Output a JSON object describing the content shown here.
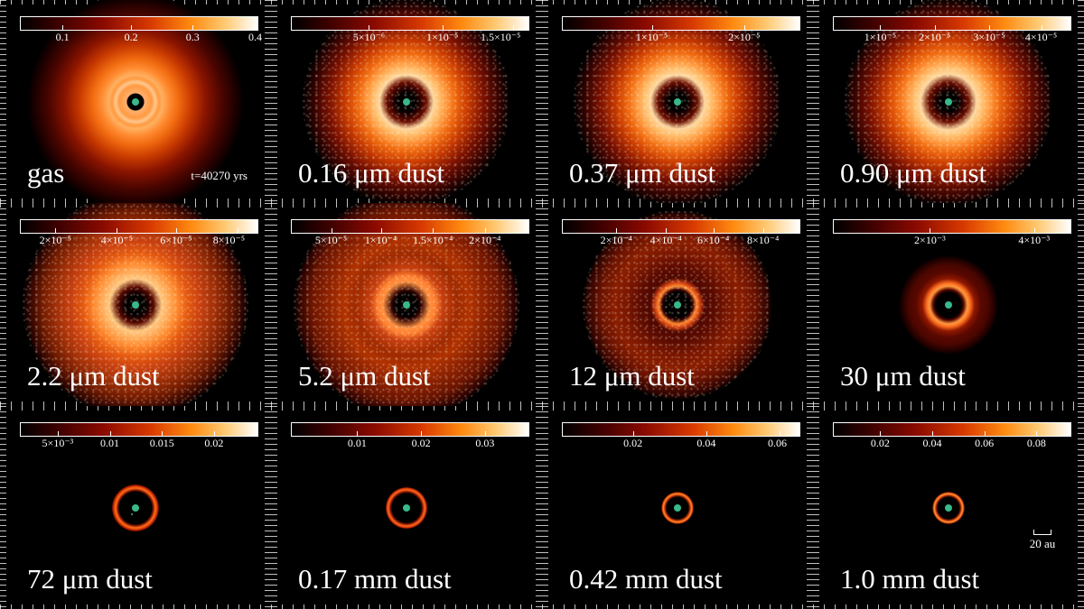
{
  "panels": [
    {
      "label": "gas",
      "time": "t=40270 yrs",
      "ticks": [
        "0.1",
        "0.2",
        "0.3",
        "0.4"
      ],
      "tickpos": [
        0.18,
        0.47,
        0.73,
        1.0
      ]
    },
    {
      "label": "0.16 μm dust",
      "ticks": [
        "5×10⁻⁶",
        "1×10⁻⁵",
        "1.5×10⁻⁵"
      ],
      "tickpos": [
        0.33,
        0.64,
        0.94
      ]
    },
    {
      "label": "0.37 μm dust",
      "ticks": [
        "1×10⁻⁵",
        "2×10⁻⁵"
      ],
      "tickpos": [
        0.38,
        0.77
      ]
    },
    {
      "label": "0.90 μm dust",
      "ticks": [
        "1×10⁻⁵",
        "2×10⁻⁵",
        "3×10⁻⁵",
        "4×10⁻⁵"
      ],
      "tickpos": [
        0.2,
        0.43,
        0.66,
        0.88
      ]
    },
    {
      "label": "2.2 μm dust",
      "ticks": [
        "2×10⁻⁵",
        "4×10⁻⁵",
        "6×10⁻⁵",
        "8×10⁻⁵"
      ],
      "tickpos": [
        0.15,
        0.41,
        0.66,
        0.92
      ]
    },
    {
      "label": "5.2 μm dust",
      "ticks": [
        "5×10⁻⁵",
        "1×10⁻⁴",
        "1.5×10⁻⁴",
        "2×10⁻⁴"
      ],
      "tickpos": [
        0.17,
        0.38,
        0.6,
        0.82
      ]
    },
    {
      "label": "12 μm dust",
      "ticks": [
        "2×10⁻⁴",
        "4×10⁻⁴",
        "6×10⁻⁴",
        "8×10⁻⁴"
      ],
      "tickpos": [
        0.23,
        0.44,
        0.64,
        0.85
      ]
    },
    {
      "label": "30 μm dust",
      "ticks": [
        "2×10⁻³",
        "4×10⁻³"
      ],
      "tickpos": [
        0.41,
        0.85
      ]
    },
    {
      "label": "72 μm dust",
      "ticks": [
        "5×10⁻³",
        "0.01",
        "0.015",
        "0.02"
      ],
      "tickpos": [
        0.16,
        0.38,
        0.6,
        0.82
      ]
    },
    {
      "label": "0.17 mm dust",
      "ticks": [
        "0.01",
        "0.02",
        "0.03"
      ],
      "tickpos": [
        0.28,
        0.55,
        0.82
      ]
    },
    {
      "label": "0.42 mm dust",
      "ticks": [
        "0.02",
        "0.04",
        "0.06"
      ],
      "tickpos": [
        0.3,
        0.61,
        0.92
      ]
    },
    {
      "label": "1.0 mm dust",
      "ticks": [
        "0.02",
        "0.04",
        "0.06",
        "0.08"
      ],
      "tickpos": [
        0.2,
        0.42,
        0.64,
        0.86
      ],
      "scale": "20 au"
    }
  ],
  "colors": {
    "background": "#000000",
    "planet": "#39b98a",
    "colormap": "black-red-orange-white"
  }
}
